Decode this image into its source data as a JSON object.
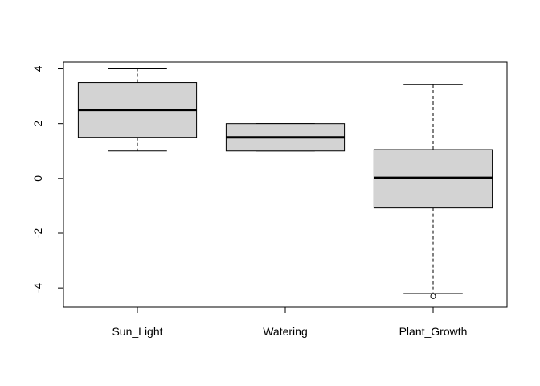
{
  "chart_data": {
    "type": "boxplot",
    "title": "",
    "xlabel": "",
    "ylabel": "",
    "categories": [
      "Sun_Light",
      "Watering",
      "Plant_Growth"
    ],
    "boxes": [
      {
        "category": "Sun_Light",
        "whisker_low": 1.0,
        "q1": 1.5,
        "median": 2.5,
        "q3": 3.5,
        "whisker_high": 4.0,
        "outliers": []
      },
      {
        "category": "Watering",
        "whisker_low": 1.0,
        "q1": 1.0,
        "median": 1.5,
        "q3": 2.0,
        "whisker_high": 2.0,
        "outliers": []
      },
      {
        "category": "Plant_Growth",
        "whisker_low": -4.2,
        "q1": -1.08,
        "median": 0.02,
        "q3": 1.05,
        "whisker_high": 3.42,
        "outliers": [
          -4.3
        ]
      }
    ],
    "yticks": [
      -4,
      -2,
      0,
      2,
      4
    ],
    "ylim": [
      -4.7,
      4.25
    ],
    "grid": false,
    "colors": {
      "box_fill": "#d3d3d3",
      "stroke": "#000000",
      "background": "#ffffff"
    }
  }
}
